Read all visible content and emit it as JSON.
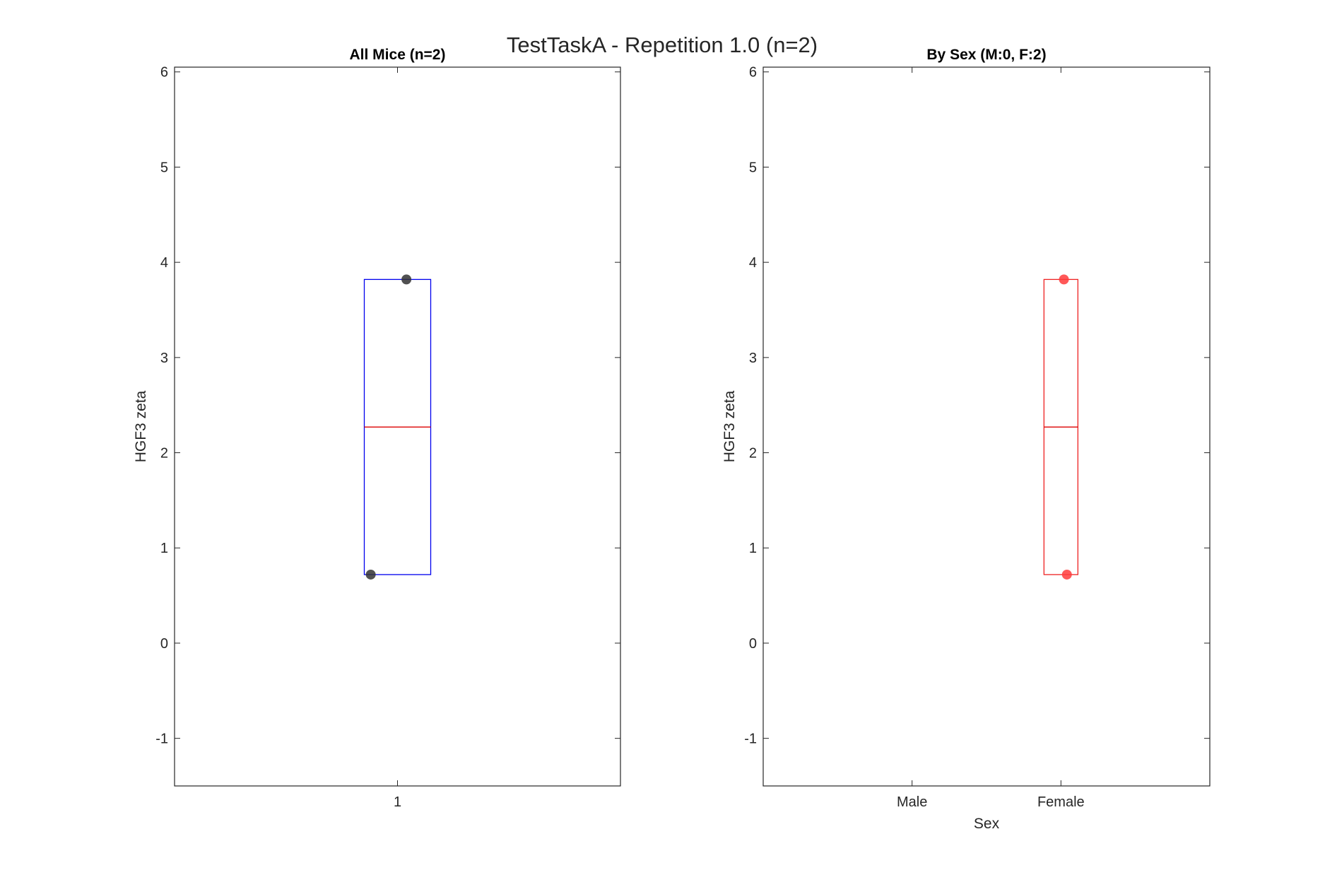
{
  "figure": {
    "title": "TestTaskA - Repetition 1.0 (n=2)"
  },
  "colors": {
    "axes": "#262626",
    "median": "#dd0000",
    "all_box": "#0000ee",
    "all_points": "#333333",
    "female_box": "#ee2222",
    "female_points": "#ff3b3b"
  },
  "chart_data": [
    {
      "type": "box",
      "title": "All Mice (n=2)",
      "xlabel": "",
      "ylabel": "HGF3 zeta",
      "ylim": [
        -1.5,
        6.05
      ],
      "yticks": [
        -1,
        0,
        1,
        2,
        3,
        4,
        5,
        6
      ],
      "categories": [
        "1"
      ],
      "boxes": [
        {
          "category": "1",
          "q1": 0.72,
          "median": 2.27,
          "q3": 3.82,
          "color_key": "all_box"
        }
      ],
      "points": [
        {
          "category": "1",
          "y": 3.82,
          "jitter": 0.04,
          "color_key": "all_points"
        },
        {
          "category": "1",
          "y": 0.72,
          "jitter": -0.12,
          "color_key": "all_points"
        }
      ],
      "grid": false,
      "legend": "none"
    },
    {
      "type": "box",
      "title": "By Sex (M:0, F:2)",
      "xlabel": "Sex",
      "ylabel": "HGF3 zeta",
      "ylim": [
        -1.5,
        6.05
      ],
      "yticks": [
        -1,
        0,
        1,
        2,
        3,
        4,
        5,
        6
      ],
      "categories": [
        "Male",
        "Female"
      ],
      "boxes": [
        {
          "category": "Female",
          "q1": 0.72,
          "median": 2.27,
          "q3": 3.82,
          "color_key": "female_box"
        }
      ],
      "points": [
        {
          "category": "Female",
          "y": 3.82,
          "jitter": 0.02,
          "color_key": "female_points"
        },
        {
          "category": "Female",
          "y": 0.72,
          "jitter": 0.04,
          "color_key": "female_points"
        }
      ],
      "grid": false,
      "legend": "none"
    }
  ]
}
